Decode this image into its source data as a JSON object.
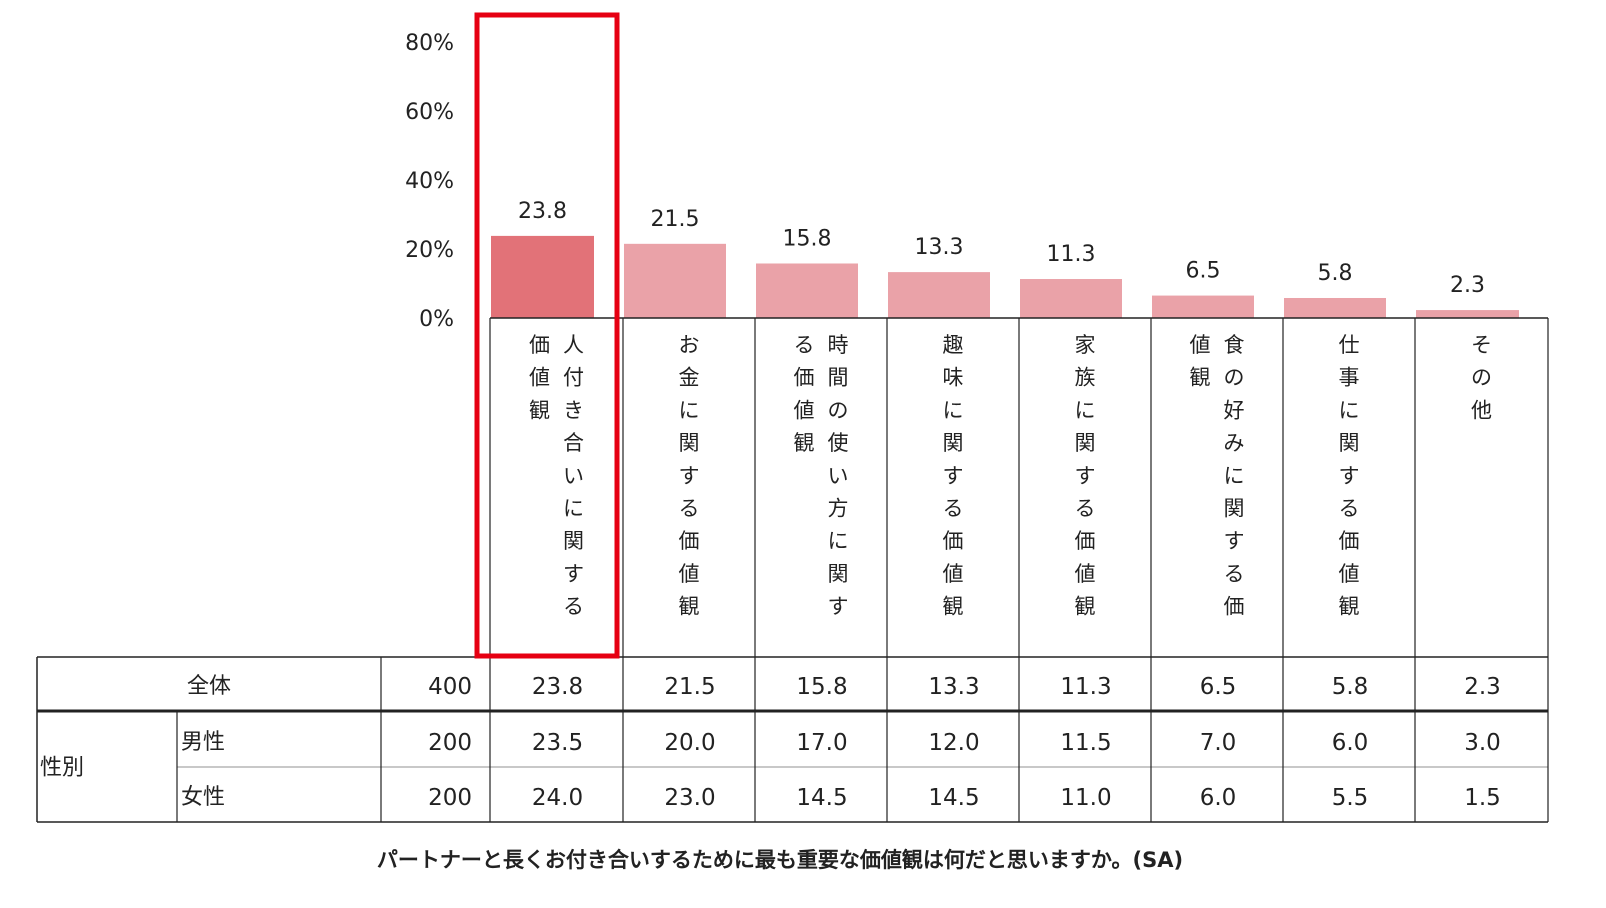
{
  "chart_data": {
    "type": "bar",
    "yticks": [
      "80%",
      "60%",
      "40%",
      "20%",
      "0%"
    ],
    "ylim": [
      0,
      80
    ],
    "categories": [
      "人付き合いに関する価値観",
      "お金に関する価値観",
      "時間の使い方に関する価値観",
      "趣味に関する価値観",
      "家族に関する価値観",
      "食の好みに関する価値観",
      "仕事に関する価値観",
      "その他"
    ],
    "category_columns": [
      [
        "人付き合いに関する",
        "価値観"
      ],
      [
        "お金に関する価値観"
      ],
      [
        "時間の使い方に関す",
        "る価値観"
      ],
      [
        "趣味に関する価値観"
      ],
      [
        "家族に関する価値観"
      ],
      [
        "食の好みに関する価",
        "値観"
      ],
      [
        "仕事に関する価値観"
      ],
      [
        "その他"
      ]
    ],
    "values": [
      23.8,
      21.5,
      15.8,
      13.3,
      11.3,
      6.5,
      5.8,
      2.3
    ],
    "value_labels": [
      "23.8",
      "21.5",
      "15.8",
      "13.3",
      "11.3",
      "6.5",
      "5.8",
      "2.3"
    ],
    "colors": {
      "highlight_bar": "#e27278",
      "bar": "#eaa2a8",
      "highlight_box": "#e60012"
    },
    "highlight_index": 0,
    "grid": false,
    "table": {
      "rows": [
        {
          "group": "",
          "label": "全体",
          "n": "400",
          "values": [
            "23.8",
            "21.5",
            "15.8",
            "13.3",
            "11.3",
            "6.5",
            "5.8",
            "2.3"
          ]
        },
        {
          "group": "性別",
          "label": "男性",
          "n": "200",
          "values": [
            "23.5",
            "20.0",
            "17.0",
            "12.0",
            "11.5",
            "7.0",
            "6.0",
            "3.0"
          ]
        },
        {
          "group": "性別",
          "label": "女性",
          "n": "200",
          "values": [
            "24.0",
            "23.0",
            "14.5",
            "14.5",
            "11.0",
            "6.0",
            "5.5",
            "1.5"
          ]
        }
      ]
    },
    "caption": "パートナーと長くお付き合いするために最も重要な価値観は何だと思いますか。(SA)"
  }
}
